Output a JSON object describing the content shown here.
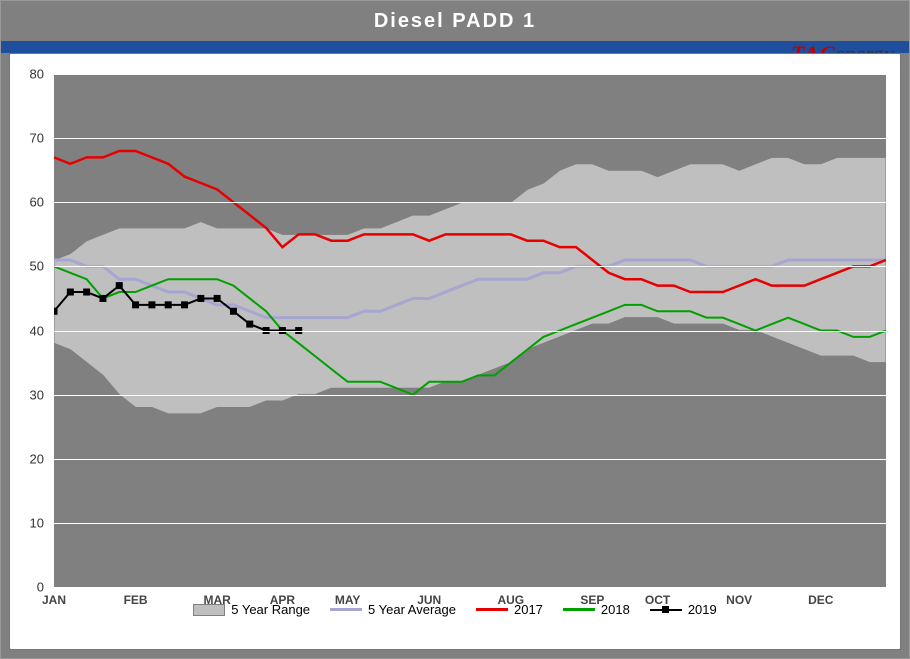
{
  "title": "Diesel PADD 1",
  "logo": {
    "brand": "TAC",
    "suffix": "energy"
  },
  "chart": {
    "type": "line-area",
    "background_color": "#808080",
    "plot_background": "#ffffff",
    "grid_color": "#ffffff",
    "title_color": "#ffffff",
    "blue_strip_color": "#1f4e9c",
    "ylim": [
      0,
      80
    ],
    "ytick_step": 10,
    "yticks": [
      0,
      10,
      20,
      30,
      40,
      50,
      60,
      70,
      80
    ],
    "x_categories": [
      "JAN",
      "FEB",
      "MAR",
      "APR",
      "MAY",
      "JUN",
      "AUG",
      "SEP",
      "OCT",
      "NOV",
      "DEC"
    ],
    "x_weeks_per_label": [
      0,
      5,
      10,
      14,
      18,
      23,
      28,
      33,
      37,
      42,
      47
    ],
    "total_weeks": 52,
    "range_area": {
      "color_fill": "#bfbfbf",
      "color_stroke": "#7f7f7f",
      "upper": [
        51,
        52,
        54,
        55,
        56,
        56,
        56,
        56,
        56,
        57,
        56,
        56,
        56,
        56,
        55,
        55,
        55,
        55,
        55,
        56,
        56,
        57,
        58,
        58,
        59,
        60,
        60,
        60,
        60,
        62,
        63,
        65,
        66,
        66,
        65,
        65,
        65,
        64,
        65,
        66,
        66,
        66,
        65,
        66,
        67,
        67,
        66,
        66,
        67,
        67,
        67,
        67
      ],
      "lower": [
        38,
        37,
        35,
        33,
        30,
        28,
        28,
        27,
        27,
        27,
        28,
        28,
        28,
        29,
        29,
        30,
        30,
        31,
        31,
        31,
        31,
        31,
        31,
        31,
        32,
        32,
        33,
        34,
        35,
        37,
        38,
        39,
        40,
        41,
        41,
        42,
        42,
        42,
        41,
        41,
        41,
        41,
        40,
        40,
        39,
        38,
        37,
        36,
        36,
        36,
        35,
        35
      ]
    },
    "series": [
      {
        "name": "5 Year Average",
        "color": "#a6a6d0",
        "width": 3,
        "values": [
          51,
          51,
          50,
          50,
          48,
          48,
          47,
          46,
          46,
          45,
          44,
          44,
          43,
          42,
          42,
          42,
          42,
          42,
          42,
          43,
          43,
          44,
          45,
          45,
          46,
          47,
          48,
          48,
          48,
          48,
          49,
          49,
          50,
          50,
          50,
          51,
          51,
          51,
          51,
          51,
          50,
          50,
          50,
          50,
          50,
          51,
          51,
          51,
          51,
          51,
          51,
          51
        ]
      },
      {
        "name": "2017",
        "color": "#e60000",
        "width": 2.5,
        "values": [
          67,
          66,
          67,
          67,
          68,
          68,
          67,
          66,
          64,
          63,
          62,
          60,
          58,
          56,
          53,
          55,
          55,
          54,
          54,
          55,
          55,
          55,
          55,
          54,
          55,
          55,
          55,
          55,
          55,
          54,
          54,
          53,
          53,
          51,
          49,
          48,
          48,
          47,
          47,
          46,
          46,
          46,
          47,
          48,
          47,
          47,
          47,
          48,
          49,
          50,
          50,
          51
        ]
      },
      {
        "name": "2018",
        "color": "#00a000",
        "width": 2,
        "values": [
          50,
          49,
          48,
          45,
          46,
          46,
          47,
          48,
          48,
          48,
          48,
          47,
          45,
          43,
          40,
          38,
          36,
          34,
          32,
          32,
          32,
          31,
          30,
          32,
          32,
          32,
          33,
          33,
          35,
          37,
          39,
          40,
          41,
          42,
          43,
          44,
          44,
          43,
          43,
          43,
          42,
          42,
          41,
          40,
          41,
          42,
          41,
          40,
          40,
          39,
          39,
          40
        ]
      },
      {
        "name": "2019",
        "color": "#000000",
        "width": 2,
        "marker": "square",
        "values": [
          43,
          46,
          46,
          45,
          47,
          44,
          44,
          44,
          44,
          45,
          45,
          43,
          41,
          40,
          40,
          40
        ]
      }
    ],
    "legend": {
      "items": [
        {
          "label": "5 Year Range",
          "type": "area"
        },
        {
          "label": "5 Year Average",
          "type": "line",
          "class": "avg"
        },
        {
          "label": "2017",
          "type": "line",
          "class": "s2017"
        },
        {
          "label": "2018",
          "type": "line",
          "class": "s2018"
        },
        {
          "label": "2019",
          "type": "marker"
        }
      ]
    }
  }
}
